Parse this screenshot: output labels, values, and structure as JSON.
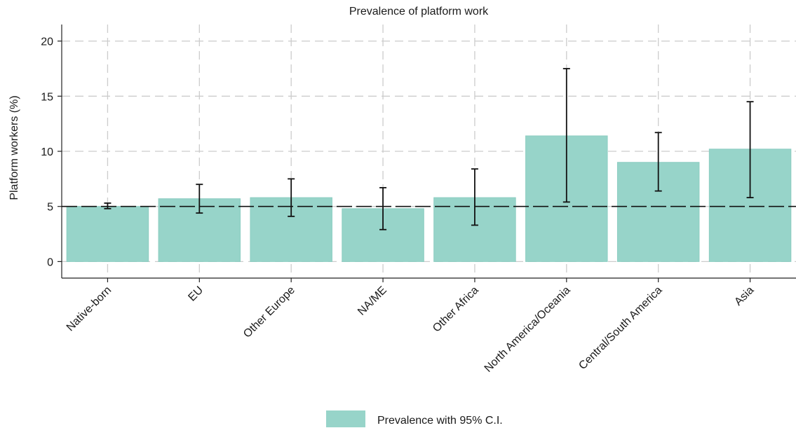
{
  "chart_data": {
    "type": "bar",
    "title": "Prevalence of platform work",
    "xlabel": "",
    "ylabel": "Platform workers (%)",
    "ylim": [
      -1.5,
      21.5
    ],
    "yticks": [
      0,
      5,
      10,
      15,
      20
    ],
    "grid": true,
    "legend_position": "bottom-center",
    "reference_line": 5.0,
    "categories": [
      "Native-born",
      "EU",
      "Other Europe",
      "NA/ME",
      "Other Africa",
      "North America/Oceania",
      "Central/South America",
      "Asia"
    ],
    "series": [
      {
        "name": "Prevalence with 95% C.I.",
        "values": [
          5.0,
          5.7,
          5.8,
          4.8,
          5.8,
          11.4,
          9.0,
          10.2
        ],
        "ci_low": [
          4.8,
          4.4,
          4.1,
          2.9,
          3.3,
          5.4,
          6.4,
          5.8
        ],
        "ci_high": [
          5.3,
          7.0,
          7.5,
          6.7,
          8.4,
          17.5,
          11.7,
          14.5
        ]
      }
    ]
  },
  "colors": {
    "bar": "#97d4c9",
    "bar_edge": "#8ccdc1",
    "error_bar": "#111111",
    "reference_line": "#111111",
    "grid": "#cccccc"
  }
}
